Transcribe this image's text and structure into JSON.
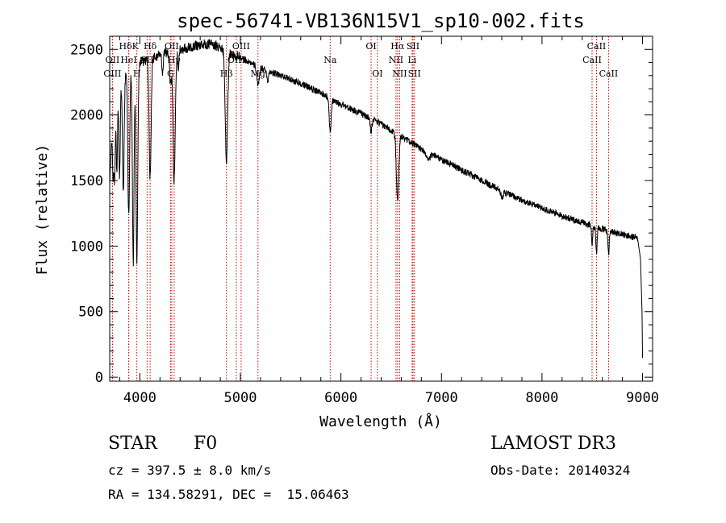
{
  "chart_data": {
    "type": "line",
    "title": "spec-56741-VB136N15V1_sp10-002.fits",
    "xlabel": "Wavelength (Å)",
    "ylabel": "Flux (relative)",
    "xlim": [
      3700,
      9100
    ],
    "ylim": [
      -30,
      2600
    ],
    "xticks": [
      4000,
      5000,
      6000,
      7000,
      8000,
      9000
    ],
    "yticks": [
      0,
      500,
      1000,
      1500,
      2000,
      2500
    ],
    "continuum": [
      [
        3700,
        1500
      ],
      [
        3720,
        1800
      ],
      [
        3760,
        2100
      ],
      [
        3800,
        2250
      ],
      [
        3850,
        2300
      ],
      [
        3900,
        2350
      ],
      [
        3950,
        2380
      ],
      [
        4000,
        2400
      ],
      [
        4100,
        2430
      ],
      [
        4200,
        2460
      ],
      [
        4300,
        2490
      ],
      [
        4400,
        2500
      ],
      [
        4500,
        2520
      ],
      [
        4600,
        2535
      ],
      [
        4700,
        2540
      ],
      [
        4800,
        2520
      ],
      [
        4900,
        2470
      ],
      [
        5000,
        2440
      ],
      [
        5100,
        2400
      ],
      [
        5200,
        2360
      ],
      [
        5400,
        2300
      ],
      [
        5600,
        2240
      ],
      [
        5800,
        2170
      ],
      [
        6000,
        2080
      ],
      [
        6200,
        2010
      ],
      [
        6400,
        1930
      ],
      [
        6600,
        1840
      ],
      [
        6800,
        1740
      ],
      [
        7000,
        1660
      ],
      [
        7200,
        1580
      ],
      [
        7400,
        1500
      ],
      [
        7600,
        1420
      ],
      [
        7800,
        1350
      ],
      [
        8000,
        1290
      ],
      [
        8200,
        1230
      ],
      [
        8400,
        1180
      ],
      [
        8600,
        1130
      ],
      [
        8800,
        1090
      ],
      [
        8950,
        1060
      ],
      [
        8980,
        900
      ],
      [
        8995,
        500
      ],
      [
        9000,
        150
      ]
    ],
    "absorption_features": [
      {
        "center": 3735,
        "depth": 400,
        "width": 6
      },
      {
        "center": 3750,
        "depth": 500,
        "width": 6
      },
      {
        "center": 3771,
        "depth": 600,
        "width": 6
      },
      {
        "center": 3798,
        "depth": 700,
        "width": 7
      },
      {
        "center": 3835,
        "depth": 900,
        "width": 8
      },
      {
        "center": 3889,
        "depth": 1100,
        "width": 9
      },
      {
        "center": 3934,
        "depth": 1500,
        "width": 8
      },
      {
        "center": 3970,
        "depth": 1500,
        "width": 9
      },
      {
        "center": 4102,
        "depth": 900,
        "width": 10
      },
      {
        "center": 4226,
        "depth": 150,
        "width": 6
      },
      {
        "center": 4305,
        "depth": 250,
        "width": 10
      },
      {
        "center": 4341,
        "depth": 1000,
        "width": 11
      },
      {
        "center": 4383,
        "depth": 150,
        "width": 6
      },
      {
        "center": 4861,
        "depth": 850,
        "width": 12
      },
      {
        "center": 5175,
        "depth": 150,
        "width": 12
      },
      {
        "center": 5270,
        "depth": 80,
        "width": 8
      },
      {
        "center": 5893,
        "depth": 250,
        "width": 10
      },
      {
        "center": 6300,
        "depth": 100,
        "width": 8
      },
      {
        "center": 6563,
        "depth": 500,
        "width": 12
      },
      {
        "center": 6870,
        "depth": 60,
        "width": 15
      },
      {
        "center": 7600,
        "depth": 40,
        "width": 15
      },
      {
        "center": 8498,
        "depth": 150,
        "width": 6
      },
      {
        "center": 8542,
        "depth": 200,
        "width": 6
      },
      {
        "center": 8662,
        "depth": 180,
        "width": 6
      }
    ],
    "noise_seed": 56741,
    "noise_amplitude": 25,
    "spectral_lines": [
      {
        "label": "HδK",
        "wavelength": 3890,
        "row": 1
      },
      {
        "label": "H",
        "wavelength": 3970,
        "row": 3
      },
      {
        "label": "OII",
        "wavelength": 3727,
        "row": 2
      },
      {
        "label": "OIII",
        "wavelength": 3727,
        "row": 3
      },
      {
        "label": "HeI",
        "wavelength": 3889,
        "row": 2
      },
      {
        "label": "SII",
        "wavelength": 4072,
        "row": 2
      },
      {
        "label": "Hδ",
        "wavelength": 4102,
        "row": 1
      },
      {
        "label": "OII",
        "wavelength": 4317,
        "row": 1
      },
      {
        "label": "G",
        "wavelength": 4305,
        "row": 3
      },
      {
        "label": "Hγ",
        "wavelength": 4341,
        "row": 2
      },
      {
        "label": "OIII",
        "wavelength": 5007,
        "row": 1
      },
      {
        "label": "OIII",
        "wavelength": 4959,
        "row": 2
      },
      {
        "label": "Hβ",
        "wavelength": 4861,
        "row": 3
      },
      {
        "label": "Mg",
        "wavelength": 5175,
        "row": 3
      },
      {
        "label": "Na",
        "wavelength": 5893,
        "row": 2
      },
      {
        "label": "OI",
        "wavelength": 6300,
        "row": 1
      },
      {
        "label": "OI",
        "wavelength": 6363,
        "row": 3
      },
      {
        "label": "Hα",
        "wavelength": 6563,
        "row": 1
      },
      {
        "label": "SII",
        "wavelength": 6717,
        "row": 1
      },
      {
        "label": "NII",
        "wavelength": 6548,
        "row": 2
      },
      {
        "label": "Li",
        "wavelength": 6708,
        "row": 2
      },
      {
        "label": "NII",
        "wavelength": 6584,
        "row": 3
      },
      {
        "label": "SII",
        "wavelength": 6731,
        "row": 3
      },
      {
        "label": "CaII",
        "wavelength": 8542,
        "row": 1
      },
      {
        "label": "CaII",
        "wavelength": 8498,
        "row": 2
      },
      {
        "label": "CaII",
        "wavelength": 8662,
        "row": 3
      }
    ]
  },
  "info": {
    "object_class": "STAR",
    "subclass": "F0",
    "redshift": "cz = 397.5 ± 8.0 km/s",
    "coords": "RA = 134.58291, DEC =  15.06463",
    "survey": "LAMOST DR3",
    "obs_date": "Obs-Date: 20140324"
  },
  "colors": {
    "spectrum": "#000000",
    "line_marker": "#cc0000",
    "axis": "#000000"
  }
}
